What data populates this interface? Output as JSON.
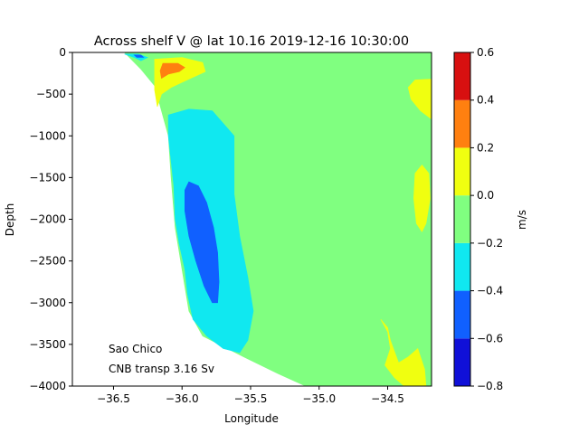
{
  "chart_data": {
    "type": "contourf",
    "title": "Across shelf V @ lat 10.16 2019-12-16 10:30:00",
    "xlabel": "Longitude",
    "ylabel": "Depth",
    "xlim": [
      -36.8,
      -34.18
    ],
    "ylim": [
      -4000,
      0
    ],
    "xticks": [
      -36.5,
      -36.0,
      -35.5,
      -35.0,
      -34.5
    ],
    "xtick_labels": [
      "−36.5",
      "−36.0",
      "−35.5",
      "−35.0",
      "−34.5"
    ],
    "yticks": [
      0,
      -500,
      -1000,
      -1500,
      -2000,
      -2500,
      -3000,
      -3500,
      -4000
    ],
    "ytick_labels": [
      "0",
      "−500",
      "−1000",
      "−1500",
      "−2000",
      "−2500",
      "−3000",
      "−3500",
      "−4000"
    ],
    "colorbar": {
      "label": "m/s",
      "levels": [
        -0.8,
        -0.6,
        -0.4,
        -0.2,
        0.0,
        0.2,
        0.4,
        0.6
      ],
      "tick_labels": [
        "−0.8",
        "−0.6",
        "−0.4",
        "−0.2",
        "0.0",
        "0.2",
        "0.4",
        "0.6"
      ],
      "colors": [
        "#1010d8",
        "#1060ff",
        "#10e8f0",
        "#80ff80",
        "#f0ff10",
        "#ff8010",
        "#d81010"
      ]
    },
    "annotations": [
      "Sao Chico",
      "CNB transp 3.16 Sv"
    ],
    "regions": [
      {
        "level": "-0.2 to 0.0",
        "color": "#80ff80",
        "points": [
          [
            -36.42,
            0
          ],
          [
            -34.18,
            0
          ],
          [
            -34.18,
            -4000
          ],
          [
            -35.1,
            -4000
          ],
          [
            -35.3,
            -3850
          ],
          [
            -35.55,
            -3650
          ],
          [
            -35.85,
            -3400
          ],
          [
            -35.95,
            -3100
          ],
          [
            -36.0,
            -2600
          ],
          [
            -36.05,
            -2100
          ],
          [
            -36.08,
            -1500
          ],
          [
            -36.1,
            -1000
          ],
          [
            -36.15,
            -700
          ],
          [
            -36.2,
            -400
          ],
          [
            -36.3,
            -200
          ]
        ]
      },
      {
        "level": "-0.4 to -0.2",
        "color": "#10e8f0",
        "points": [
          [
            -36.1,
            -750
          ],
          [
            -35.95,
            -680
          ],
          [
            -35.78,
            -700
          ],
          [
            -35.7,
            -850
          ],
          [
            -35.62,
            -1000
          ],
          [
            -35.62,
            -1300
          ],
          [
            -35.62,
            -1700
          ],
          [
            -35.58,
            -2200
          ],
          [
            -35.52,
            -2700
          ],
          [
            -35.48,
            -3100
          ],
          [
            -35.52,
            -3450
          ],
          [
            -35.58,
            -3600
          ],
          [
            -35.7,
            -3550
          ],
          [
            -35.82,
            -3400
          ],
          [
            -35.92,
            -3200
          ],
          [
            -35.96,
            -2900
          ],
          [
            -35.98,
            -2600
          ],
          [
            -36.02,
            -2300
          ],
          [
            -36.05,
            -2000
          ],
          [
            -36.06,
            -1600
          ],
          [
            -36.08,
            -1300
          ],
          [
            -36.1,
            -1000
          ]
        ]
      },
      {
        "level": "-0.6 to -0.4",
        "color": "#1060ff",
        "points": [
          [
            -35.95,
            -1550
          ],
          [
            -35.88,
            -1600
          ],
          [
            -35.82,
            -1800
          ],
          [
            -35.77,
            -2100
          ],
          [
            -35.74,
            -2400
          ],
          [
            -35.73,
            -2750
          ],
          [
            -35.74,
            -3000
          ],
          [
            -35.78,
            -3000
          ],
          [
            -35.84,
            -2800
          ],
          [
            -35.9,
            -2500
          ],
          [
            -35.95,
            -2200
          ],
          [
            -35.98,
            -1900
          ],
          [
            -35.98,
            -1650
          ]
        ]
      },
      {
        "level": "0.0 to 0.2",
        "color": "#f0ff10",
        "points": [
          [
            -36.2,
            -80
          ],
          [
            -36.0,
            -60
          ],
          [
            -35.85,
            -120
          ],
          [
            -35.83,
            -230
          ],
          [
            -35.95,
            -320
          ],
          [
            -36.08,
            -420
          ],
          [
            -36.15,
            -500
          ],
          [
            -36.18,
            -650
          ],
          [
            -36.2,
            -450
          ],
          [
            -36.2,
            -250
          ]
        ]
      },
      {
        "level": "0.0 to 0.2",
        "color": "#f0ff10",
        "points": [
          [
            -34.18,
            -320
          ],
          [
            -34.3,
            -330
          ],
          [
            -34.35,
            -420
          ],
          [
            -34.33,
            -560
          ],
          [
            -34.26,
            -700
          ],
          [
            -34.18,
            -800
          ]
        ]
      },
      {
        "level": "0.0 to 0.2",
        "color": "#f0ff10",
        "points": [
          [
            -34.25,
            -1350
          ],
          [
            -34.2,
            -1450
          ],
          [
            -34.19,
            -1750
          ],
          [
            -34.22,
            -2050
          ],
          [
            -34.25,
            -2150
          ],
          [
            -34.29,
            -2050
          ],
          [
            -34.31,
            -1750
          ],
          [
            -34.3,
            -1450
          ]
        ]
      },
      {
        "level": "0.0 to 0.2",
        "color": "#f0ff10",
        "points": [
          [
            -34.55,
            -3200
          ],
          [
            -34.5,
            -3350
          ],
          [
            -34.48,
            -3550
          ],
          [
            -34.52,
            -3750
          ],
          [
            -34.45,
            -3900
          ],
          [
            -34.38,
            -4000
          ],
          [
            -34.22,
            -4000
          ],
          [
            -34.23,
            -3800
          ],
          [
            -34.28,
            -3550
          ],
          [
            -34.35,
            -3650
          ],
          [
            -34.42,
            -3720
          ],
          [
            -34.48,
            -3450
          ],
          [
            -34.5,
            -3300
          ]
        ]
      },
      {
        "level": "0.2 to 0.4",
        "color": "#ff8010",
        "points": [
          [
            -36.14,
            -130
          ],
          [
            -36.03,
            -130
          ],
          [
            -35.98,
            -180
          ],
          [
            -36.02,
            -230
          ],
          [
            -36.1,
            -260
          ],
          [
            -36.15,
            -310
          ],
          [
            -36.16,
            -220
          ]
        ]
      },
      {
        "level": "-0.4 to -0.2",
        "color": "#10e8f0",
        "points": [
          [
            -36.42,
            -20
          ],
          [
            -36.32,
            -20
          ],
          [
            -36.25,
            -60
          ],
          [
            -36.3,
            -100
          ],
          [
            -36.35,
            -60
          ]
        ]
      },
      {
        "level": "-0.6 to -0.4",
        "color": "#1060ff",
        "points": [
          [
            -36.35,
            -30
          ],
          [
            -36.3,
            -30
          ],
          [
            -36.28,
            -60
          ],
          [
            -36.33,
            -60
          ]
        ]
      }
    ]
  }
}
